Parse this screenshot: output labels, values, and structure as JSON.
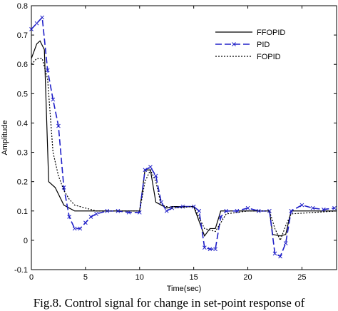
{
  "chart_data": {
    "type": "line",
    "caption": "Fig.8. Control signal for change in set-point response of",
    "xlabel": "Time(sec)",
    "ylabel": "Amplitude",
    "xlim": [
      0,
      28.2
    ],
    "ylim": [
      -0.1,
      0.8
    ],
    "xticks": [
      0,
      5,
      10,
      15,
      20,
      25
    ],
    "yticks": [
      -0.1,
      0,
      0.1,
      0.2,
      0.3,
      0.4,
      0.5,
      0.6,
      0.7,
      0.8
    ],
    "legend": "upper right",
    "series": [
      {
        "name": "FFOPID",
        "color": "#000000",
        "style": "solid",
        "x": [
          0,
          0.5,
          0.8,
          1.2,
          1.6,
          2.2,
          3,
          3.5,
          4,
          5,
          6,
          10,
          10.5,
          11,
          11.5,
          12.5,
          13,
          15,
          16,
          16.5,
          17,
          17.5,
          20,
          22,
          22.3,
          23,
          23.5,
          24,
          28.2
        ],
        "values": [
          0.62,
          0.67,
          0.68,
          0.65,
          0.2,
          0.18,
          0.12,
          0.11,
          0.1,
          0.1,
          0.1,
          0.1,
          0.24,
          0.24,
          0.13,
          0.11,
          0.115,
          0.115,
          0.015,
          0.04,
          0.04,
          0.1,
          0.1,
          0.1,
          0.02,
          0.015,
          0.02,
          0.1,
          0.1
        ]
      },
      {
        "name": "PID",
        "color": "#2020c8",
        "style": "dashed",
        "marker": "x",
        "x": [
          0,
          0.5,
          1,
          1.5,
          2,
          2.5,
          3,
          3.5,
          4,
          4.5,
          5,
          5.5,
          6,
          7,
          8,
          9,
          10,
          10.5,
          11,
          11.5,
          12,
          12.5,
          13,
          14,
          15,
          15.5,
          16,
          16.5,
          17,
          17.5,
          18,
          19,
          20,
          21,
          22,
          22.5,
          23,
          23.5,
          24,
          25,
          26,
          27,
          28
        ],
        "values": [
          0.72,
          0.74,
          0.76,
          0.58,
          0.48,
          0.39,
          0.18,
          0.08,
          0.04,
          0.04,
          0.06,
          0.08,
          0.09,
          0.1,
          0.1,
          0.095,
          0.095,
          0.24,
          0.25,
          0.22,
          0.13,
          0.1,
          0.11,
          0.115,
          0.115,
          0.1,
          -0.025,
          -0.03,
          -0.03,
          0.08,
          0.1,
          0.1,
          0.11,
          0.1,
          0.1,
          -0.045,
          -0.055,
          -0.01,
          0.1,
          0.12,
          0.11,
          0.105,
          0.11
        ]
      },
      {
        "name": "FOPID",
        "color": "#000000",
        "style": "dotted",
        "x": [
          0,
          0.5,
          1,
          1.5,
          2,
          2.5,
          3,
          3.5,
          4,
          5,
          6,
          10,
          10.5,
          11,
          11.5,
          12,
          13,
          15,
          16,
          17,
          17.5,
          18,
          20,
          22,
          22.5,
          23,
          23.5,
          24,
          28.2
        ],
        "values": [
          0.6,
          0.62,
          0.62,
          0.55,
          0.3,
          0.22,
          0.17,
          0.14,
          0.12,
          0.11,
          0.1,
          0.1,
          0.2,
          0.24,
          0.2,
          0.12,
          0.11,
          0.115,
          0.04,
          0.03,
          0.06,
          0.09,
          0.1,
          0.1,
          0.04,
          0.0,
          0.05,
          0.09,
          0.1
        ]
      }
    ]
  }
}
